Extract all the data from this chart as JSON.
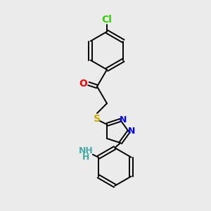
{
  "background_color": "#ebebeb",
  "bond_color": "#000000",
  "cl_color": "#33cc00",
  "o_color": "#ff0000",
  "s_color": "#ccaa00",
  "n_color": "#0000ff",
  "nh2_color": "#44aaaa",
  "cl_label": "Cl",
  "o_label": "O",
  "s_label": "S",
  "n_label": "N",
  "nh2_label": "NH",
  "h_label": "H",
  "font_size": 9
}
